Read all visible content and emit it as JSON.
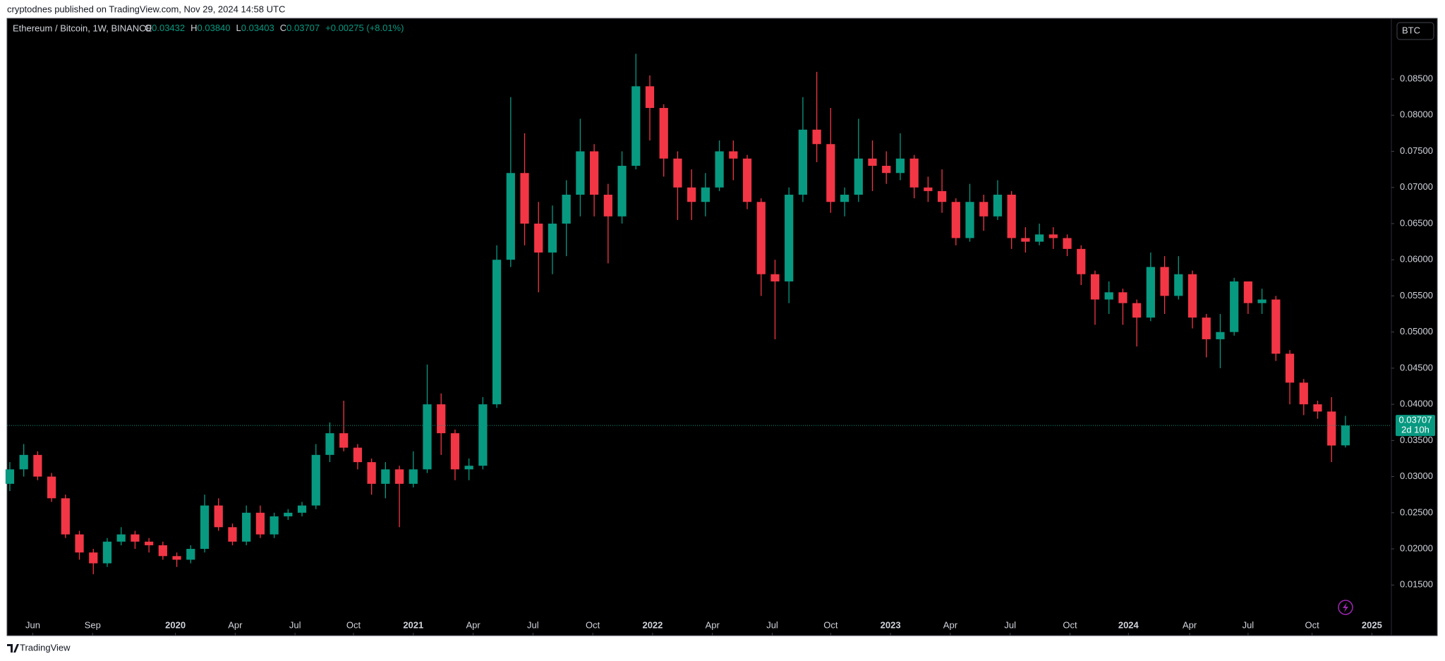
{
  "chart_data": {
    "type": "candlestick",
    "published": "cryptodnes published on TradingView.com, Nov 29, 2024 14:58 UTC",
    "currency": "BTC",
    "brand": "TradingView",
    "legend": {
      "symbol": "Ethereum / Bitcoin, 1W, BINANCE",
      "o_label": "O",
      "o": "0.03432",
      "h_label": "H",
      "h": "0.03840",
      "l_label": "L",
      "l": "0.03403",
      "c_label": "C",
      "c": "0.03707",
      "change": "+0.00275 (+8.01%)"
    },
    "last_price_label": "0.03707",
    "countdown": "2d 10h",
    "up_color": "#089981",
    "down_color": "#f23645",
    "series": [
      {
        "name": "ETHBTC",
        "values": [
          [
            0.029,
            0.032,
            0.028,
            0.031
          ],
          [
            0.031,
            0.0345,
            0.03,
            0.033
          ],
          [
            0.033,
            0.0335,
            0.0295,
            0.03
          ],
          [
            0.03,
            0.0305,
            0.0265,
            0.027
          ],
          [
            0.027,
            0.0275,
            0.0215,
            0.022
          ],
          [
            0.022,
            0.0225,
            0.0185,
            0.0195
          ],
          [
            0.0195,
            0.02,
            0.0165,
            0.018
          ],
          [
            0.018,
            0.0215,
            0.0175,
            0.021
          ],
          [
            0.021,
            0.023,
            0.0205,
            0.022
          ],
          [
            0.022,
            0.0225,
            0.02,
            0.021
          ],
          [
            0.021,
            0.0215,
            0.0195,
            0.0205
          ],
          [
            0.0205,
            0.021,
            0.0185,
            0.019
          ],
          [
            0.019,
            0.0195,
            0.0175,
            0.0185
          ],
          [
            0.0185,
            0.0205,
            0.018,
            0.02
          ],
          [
            0.02,
            0.0275,
            0.0195,
            0.026
          ],
          [
            0.026,
            0.027,
            0.0225,
            0.023
          ],
          [
            0.023,
            0.0235,
            0.0205,
            0.021
          ],
          [
            0.021,
            0.026,
            0.0205,
            0.025
          ],
          [
            0.025,
            0.026,
            0.0215,
            0.022
          ],
          [
            0.022,
            0.025,
            0.0215,
            0.0245
          ],
          [
            0.0245,
            0.0255,
            0.024,
            0.025
          ],
          [
            0.025,
            0.0265,
            0.0245,
            0.026
          ],
          [
            0.026,
            0.0345,
            0.0255,
            0.033
          ],
          [
            0.033,
            0.0375,
            0.032,
            0.036
          ],
          [
            0.036,
            0.0405,
            0.0335,
            0.034
          ],
          [
            0.034,
            0.0345,
            0.031,
            0.032
          ],
          [
            0.032,
            0.0325,
            0.0275,
            0.029
          ],
          [
            0.029,
            0.032,
            0.027,
            0.031
          ],
          [
            0.031,
            0.0315,
            0.023,
            0.029
          ],
          [
            0.029,
            0.0335,
            0.0285,
            0.031
          ],
          [
            0.031,
            0.0455,
            0.0305,
            0.04
          ],
          [
            0.04,
            0.0415,
            0.033,
            0.036
          ],
          [
            0.036,
            0.0365,
            0.0295,
            0.031
          ],
          [
            0.031,
            0.0325,
            0.0295,
            0.0315
          ],
          [
            0.0315,
            0.041,
            0.031,
            0.04
          ],
          [
            0.04,
            0.062,
            0.0395,
            0.06
          ],
          [
            0.06,
            0.0825,
            0.059,
            0.072
          ],
          [
            0.072,
            0.0775,
            0.062,
            0.065
          ],
          [
            0.065,
            0.068,
            0.0555,
            0.061
          ],
          [
            0.061,
            0.0675,
            0.058,
            0.065
          ],
          [
            0.065,
            0.071,
            0.0605,
            0.069
          ],
          [
            0.069,
            0.0795,
            0.066,
            0.075
          ],
          [
            0.075,
            0.076,
            0.066,
            0.069
          ],
          [
            0.069,
            0.0705,
            0.0595,
            0.066
          ],
          [
            0.066,
            0.075,
            0.065,
            0.073
          ],
          [
            0.073,
            0.0885,
            0.0725,
            0.084
          ],
          [
            0.084,
            0.0855,
            0.0765,
            0.081
          ],
          [
            0.081,
            0.0815,
            0.0715,
            0.074
          ],
          [
            0.074,
            0.075,
            0.0655,
            0.07
          ],
          [
            0.07,
            0.0725,
            0.0655,
            0.068
          ],
          [
            0.068,
            0.072,
            0.066,
            0.07
          ],
          [
            0.07,
            0.0765,
            0.0695,
            0.075
          ],
          [
            0.075,
            0.0765,
            0.071,
            0.074
          ],
          [
            0.074,
            0.0745,
            0.067,
            0.068
          ],
          [
            0.068,
            0.0685,
            0.055,
            0.058
          ],
          [
            0.058,
            0.06,
            0.049,
            0.057
          ],
          [
            0.057,
            0.07,
            0.054,
            0.069
          ],
          [
            0.069,
            0.0825,
            0.068,
            0.078
          ],
          [
            0.078,
            0.086,
            0.0735,
            0.076
          ],
          [
            0.076,
            0.081,
            0.0665,
            0.068
          ],
          [
            0.068,
            0.07,
            0.066,
            0.069
          ],
          [
            0.069,
            0.0795,
            0.068,
            0.074
          ],
          [
            0.074,
            0.0765,
            0.0695,
            0.073
          ],
          [
            0.073,
            0.075,
            0.0705,
            0.072
          ],
          [
            0.072,
            0.0775,
            0.071,
            0.074
          ],
          [
            0.074,
            0.0745,
            0.0685,
            0.07
          ],
          [
            0.07,
            0.0715,
            0.068,
            0.0695
          ],
          [
            0.0695,
            0.0725,
            0.0665,
            0.068
          ],
          [
            0.068,
            0.0685,
            0.062,
            0.063
          ],
          [
            0.063,
            0.0705,
            0.0625,
            0.068
          ],
          [
            0.068,
            0.069,
            0.064,
            0.066
          ],
          [
            0.066,
            0.071,
            0.0655,
            0.069
          ],
          [
            0.069,
            0.0695,
            0.0615,
            0.063
          ],
          [
            0.063,
            0.0645,
            0.061,
            0.0625
          ],
          [
            0.0625,
            0.065,
            0.062,
            0.0635
          ],
          [
            0.0635,
            0.0645,
            0.0615,
            0.063
          ],
          [
            0.063,
            0.0635,
            0.0605,
            0.0615
          ],
          [
            0.0615,
            0.062,
            0.0565,
            0.058
          ],
          [
            0.058,
            0.0585,
            0.051,
            0.0545
          ],
          [
            0.0545,
            0.057,
            0.0525,
            0.0555
          ],
          [
            0.0555,
            0.056,
            0.051,
            0.054
          ],
          [
            0.054,
            0.0545,
            0.048,
            0.052
          ],
          [
            0.052,
            0.061,
            0.0515,
            0.059
          ],
          [
            0.059,
            0.0605,
            0.0525,
            0.055
          ],
          [
            0.055,
            0.0605,
            0.0545,
            0.058
          ],
          [
            0.058,
            0.0585,
            0.0505,
            0.052
          ],
          [
            0.052,
            0.0525,
            0.0465,
            0.049
          ],
          [
            0.049,
            0.0525,
            0.045,
            0.05
          ],
          [
            0.05,
            0.0575,
            0.0495,
            0.057
          ],
          [
            0.057,
            0.0565,
            0.0525,
            0.054
          ],
          [
            0.054,
            0.056,
            0.0525,
            0.0545
          ],
          [
            0.0545,
            0.055,
            0.046,
            0.047
          ],
          [
            0.047,
            0.0475,
            0.04,
            0.043
          ],
          [
            0.043,
            0.0435,
            0.0385,
            0.04
          ],
          [
            0.04,
            0.0405,
            0.038,
            0.039
          ],
          [
            0.039,
            0.041,
            0.032,
            0.0343
          ],
          [
            0.03432,
            0.0384,
            0.03403,
            0.03707
          ]
        ]
      }
    ],
    "xlim": [
      -0.2,
      99.3
    ],
    "xticks": [
      {
        "value": 1.65,
        "label": "Jun"
      },
      {
        "value": 5.95,
        "label": "Sep"
      },
      {
        "value": 11.9,
        "label": "2020"
      },
      {
        "value": 16.2,
        "label": "Apr"
      },
      {
        "value": 20.5,
        "label": "Jul"
      },
      {
        "value": 24.7,
        "label": "Oct"
      },
      {
        "value": 29.0,
        "label": "2021"
      },
      {
        "value": 33.3,
        "label": "Apr"
      },
      {
        "value": 37.6,
        "label": "Jul"
      },
      {
        "value": 41.9,
        "label": "Oct"
      },
      {
        "value": 46.2,
        "label": "2022"
      },
      {
        "value": 50.5,
        "label": "Apr"
      },
      {
        "value": 54.8,
        "label": "Jul"
      },
      {
        "value": 59.0,
        "label": "Oct"
      },
      {
        "value": 63.3,
        "label": "2023"
      },
      {
        "value": 67.6,
        "label": "Apr"
      },
      {
        "value": 71.9,
        "label": "Jul"
      },
      {
        "value": 76.2,
        "label": "Oct"
      },
      {
        "value": 80.4,
        "label": "2024"
      },
      {
        "value": 84.8,
        "label": "Apr"
      },
      {
        "value": 89.0,
        "label": "Jul"
      },
      {
        "value": 93.6,
        "label": "Oct"
      },
      {
        "value": 97.9,
        "label": "2025"
      }
    ],
    "ylim": [
      0.008,
      0.0934
    ],
    "yticks": [
      {
        "value": 0.015,
        "label": "0.01500"
      },
      {
        "value": 0.02,
        "label": "0.02000"
      },
      {
        "value": 0.025,
        "label": "0.02500"
      },
      {
        "value": 0.03,
        "label": "0.03000"
      },
      {
        "value": 0.035,
        "label": "0.03500"
      },
      {
        "value": 0.04,
        "label": "0.04000"
      },
      {
        "value": 0.045,
        "label": "0.04500"
      },
      {
        "value": 0.05,
        "label": "0.05000"
      },
      {
        "value": 0.055,
        "label": "0.05500"
      },
      {
        "value": 0.06,
        "label": "0.06000"
      },
      {
        "value": 0.065,
        "label": "0.06500"
      },
      {
        "value": 0.07,
        "label": "0.07000"
      },
      {
        "value": 0.075,
        "label": "0.07500"
      },
      {
        "value": 0.08,
        "label": "0.08000"
      },
      {
        "value": 0.085,
        "label": "0.08500"
      }
    ]
  }
}
